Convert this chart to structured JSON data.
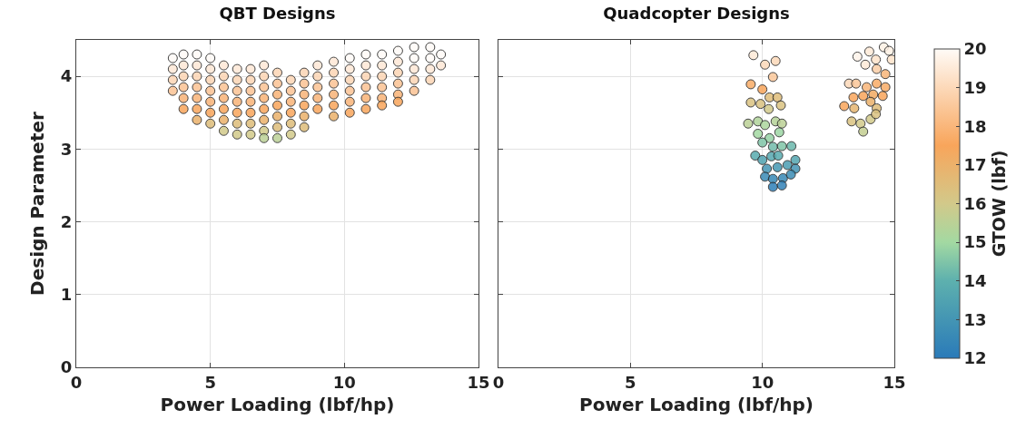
{
  "chart_data": [
    {
      "type": "scatter",
      "title": "QBT Designs",
      "xlabel": "Power Loading (lbf/hp)",
      "ylabel": "Design Parameter",
      "xlim": [
        0,
        15
      ],
      "xticks": [
        0,
        5,
        10,
        15
      ],
      "ylim": [
        0,
        4.5
      ],
      "yticks": [
        0,
        1,
        2,
        3,
        4
      ],
      "grid": true,
      "marker": "circle",
      "x": [
        3.6,
        3.6,
        3.6,
        3.6,
        4.0,
        4.0,
        4.0,
        4.0,
        4.0,
        4.0,
        4.5,
        4.5,
        4.5,
        4.5,
        4.5,
        4.5,
        4.5,
        5.0,
        5.0,
        5.0,
        5.0,
        5.0,
        5.0,
        5.0,
        5.5,
        5.5,
        5.5,
        5.5,
        5.5,
        5.5,
        5.5,
        6.0,
        6.0,
        6.0,
        6.0,
        6.0,
        6.0,
        6.0,
        6.5,
        6.5,
        6.5,
        6.5,
        6.5,
        6.5,
        6.5,
        7.0,
        7.0,
        7.0,
        7.0,
        7.0,
        7.0,
        7.0,
        7.0,
        7.5,
        7.5,
        7.5,
        7.5,
        7.5,
        7.5,
        7.5,
        8.0,
        8.0,
        8.0,
        8.0,
        8.0,
        8.0,
        8.5,
        8.5,
        8.5,
        8.5,
        8.5,
        8.5,
        9.0,
        9.0,
        9.0,
        9.0,
        9.0,
        9.6,
        9.6,
        9.6,
        9.6,
        9.6,
        9.6,
        10.2,
        10.2,
        10.2,
        10.2,
        10.2,
        10.2,
        10.8,
        10.8,
        10.8,
        10.8,
        10.8,
        10.8,
        11.4,
        11.4,
        11.4,
        11.4,
        11.4,
        11.4,
        12.0,
        12.0,
        12.0,
        12.0,
        12.0,
        12.0,
        12.6,
        12.6,
        12.6,
        12.6,
        12.6,
        13.2,
        13.2,
        13.2,
        13.2,
        13.6,
        13.6
      ],
      "values": [
        4.25,
        4.1,
        3.95,
        3.8,
        4.3,
        4.15,
        4.0,
        3.85,
        3.7,
        3.55,
        4.3,
        4.15,
        4.0,
        3.85,
        3.7,
        3.55,
        3.4,
        4.25,
        4.1,
        3.95,
        3.8,
        3.65,
        3.5,
        3.35,
        4.15,
        4.0,
        3.85,
        3.7,
        3.55,
        3.4,
        3.25,
        4.1,
        3.95,
        3.8,
        3.65,
        3.5,
        3.35,
        3.2,
        4.1,
        3.95,
        3.8,
        3.65,
        3.5,
        3.35,
        3.2,
        4.15,
        4.0,
        3.85,
        3.7,
        3.55,
        3.4,
        3.25,
        3.15,
        4.05,
        3.9,
        3.75,
        3.6,
        3.45,
        3.3,
        3.15,
        3.95,
        3.8,
        3.65,
        3.5,
        3.35,
        3.2,
        4.05,
        3.9,
        3.75,
        3.6,
        3.45,
        3.3,
        4.15,
        4.0,
        3.85,
        3.7,
        3.55,
        4.2,
        4.05,
        3.9,
        3.75,
        3.6,
        3.45,
        4.25,
        4.1,
        3.95,
        3.8,
        3.65,
        3.5,
        4.3,
        4.15,
        4.0,
        3.85,
        3.7,
        3.55,
        4.3,
        4.15,
        4.0,
        3.85,
        3.7,
        3.6,
        4.35,
        4.2,
        4.05,
        3.9,
        3.75,
        3.65,
        4.4,
        4.25,
        4.1,
        3.95,
        3.8,
        4.4,
        4.25,
        4.1,
        3.95,
        4.3,
        4.15
      ],
      "colors": [
        "#fffbf7",
        "#fee8d6",
        "#fcd5b4",
        "#fbc293",
        "#fffbf7",
        "#fee8d6",
        "#fcd5b4",
        "#fbc293",
        "#f9b377",
        "#f8a55b",
        "#fffbf7",
        "#fee8d6",
        "#fcd5b4",
        "#fbc293",
        "#f9b377",
        "#f8a55b",
        "#ebb16b",
        "#fffbf7",
        "#fee8d6",
        "#fcd5b4",
        "#fbc293",
        "#f9b377",
        "#f8a55b",
        "#ddbd7a",
        "#fee8d6",
        "#fcd5b4",
        "#fbc293",
        "#f9b377",
        "#f8a55b",
        "#ebb16b",
        "#d2c98a",
        "#fee8d6",
        "#fcd5b4",
        "#fbc293",
        "#f9b377",
        "#f8a55b",
        "#ddbd7a",
        "#d2c98a",
        "#fee8d6",
        "#fcd5b4",
        "#fbc293",
        "#f9b377",
        "#f8a55b",
        "#ddbd7a",
        "#d2c98a",
        "#fee8d6",
        "#fcd5b4",
        "#fbc293",
        "#f9b377",
        "#f8a55b",
        "#ebb16b",
        "#d2c98a",
        "#bbd196",
        "#fcd5b4",
        "#fbc293",
        "#f9b377",
        "#f8a55b",
        "#ebb16b",
        "#ddbd7a",
        "#bbd196",
        "#fcd5b4",
        "#fbc293",
        "#f9b377",
        "#f8a55b",
        "#ddbd7a",
        "#d2c98a",
        "#fcd5b4",
        "#fbc293",
        "#f9b377",
        "#f8a55b",
        "#ebb16b",
        "#ddbd7a",
        "#fee8d6",
        "#fcd5b4",
        "#fbc293",
        "#f9b377",
        "#f8a55b",
        "#fee8d6",
        "#fcd5b4",
        "#fbc293",
        "#f9b377",
        "#f8a55b",
        "#ebb16b",
        "#fffbf7",
        "#fee8d6",
        "#fcd5b4",
        "#fbc293",
        "#f9b377",
        "#f8a55b",
        "#fffbf7",
        "#fee8d6",
        "#fcd5b4",
        "#fbc293",
        "#f9b377",
        "#f8a55b",
        "#fffbf7",
        "#fee8d6",
        "#fcd5b4",
        "#fbc293",
        "#f9b377",
        "#f8a55b",
        "#fffbf7",
        "#fee8d6",
        "#fcd5b4",
        "#fbc293",
        "#f9b377",
        "#f8a55b",
        "#fffbf7",
        "#fffbf7",
        "#fee8d6",
        "#fcd5b4",
        "#fbc293",
        "#fffbf7",
        "#fffbf7",
        "#fee8d6",
        "#fcd5b4",
        "#fffbf7",
        "#fee8d6"
      ]
    },
    {
      "type": "scatter",
      "title": "Quadcopter Designs",
      "xlabel": "Power Loading (lbf/hp)",
      "clabel": "GTOW (lbf)",
      "xlim": [
        0,
        15
      ],
      "xticks": [
        0,
        5,
        10,
        15
      ],
      "ylim": [
        0,
        4.5
      ],
      "yticks": [
        0,
        1,
        2,
        3,
        4
      ],
      "tick_labels": "x",
      "grid": true,
      "marker": "circle",
      "clim": [
        12,
        20
      ],
      "cticks": [
        12,
        13,
        14,
        15,
        16,
        17,
        18,
        19,
        20
      ],
      "x": [
        9.66,
        10.1,
        10.5,
        10.4,
        9.56,
        10.0,
        10.27,
        10.57,
        9.56,
        9.93,
        10.24,
        10.7,
        9.46,
        9.83,
        10.1,
        10.5,
        10.74,
        9.83,
        10.27,
        10.64,
        10.0,
        10.4,
        10.74,
        11.1,
        9.73,
        10.0,
        10.34,
        10.6,
        11.25,
        10.17,
        10.57,
        10.95,
        11.25,
        10.1,
        10.4,
        10.78,
        11.08,
        10.4,
        10.74,
        13.6,
        14.05,
        14.6,
        14.8,
        14.9,
        13.9,
        14.3,
        14.33,
        14.66,
        13.28,
        13.55,
        13.95,
        14.33,
        14.66,
        13.45,
        13.82,
        14.2,
        14.56,
        13.1,
        13.48,
        14.1,
        14.33,
        13.38,
        13.72,
        14.1,
        14.3,
        13.82
      ],
      "values": [
        4.29,
        4.16,
        4.21,
        3.99,
        3.89,
        3.82,
        3.71,
        3.71,
        3.64,
        3.62,
        3.55,
        3.6,
        3.35,
        3.38,
        3.33,
        3.38,
        3.35,
        3.21,
        3.15,
        3.23,
        3.09,
        3.03,
        3.04,
        3.04,
        2.91,
        2.85,
        2.9,
        2.91,
        2.85,
        2.73,
        2.75,
        2.78,
        2.73,
        2.62,
        2.59,
        2.6,
        2.65,
        2.48,
        2.5,
        4.27,
        4.34,
        4.4,
        4.35,
        4.23,
        4.16,
        4.23,
        4.1,
        4.03,
        3.9,
        3.9,
        3.85,
        3.9,
        3.85,
        3.71,
        3.73,
        3.75,
        3.73,
        3.59,
        3.56,
        3.65,
        3.56,
        3.38,
        3.35,
        3.41,
        3.48,
        3.24
      ],
      "cvalues": [
        19.5,
        19,
        19,
        18.5,
        17.7,
        17.5,
        16.5,
        16.5,
        16.3,
        16.3,
        16,
        16.3,
        15.5,
        15.3,
        15.2,
        15.4,
        15.5,
        15,
        14.8,
        14.9,
        14.5,
        14.3,
        14.5,
        14.2,
        13.8,
        13.5,
        13.7,
        13.8,
        13.6,
        13,
        13.1,
        13.3,
        13,
        12.6,
        12.5,
        12.5,
        12.7,
        12.2,
        12.3,
        19.8,
        19.5,
        19.7,
        19.7,
        19.3,
        19.5,
        19.3,
        18.7,
        18,
        19,
        18.5,
        18,
        17.7,
        17.7,
        17.5,
        17.5,
        17.3,
        17.5,
        17.5,
        16.8,
        17,
        16.5,
        16.3,
        16,
        16,
        16.3,
        15.7
      ]
    }
  ]
}
